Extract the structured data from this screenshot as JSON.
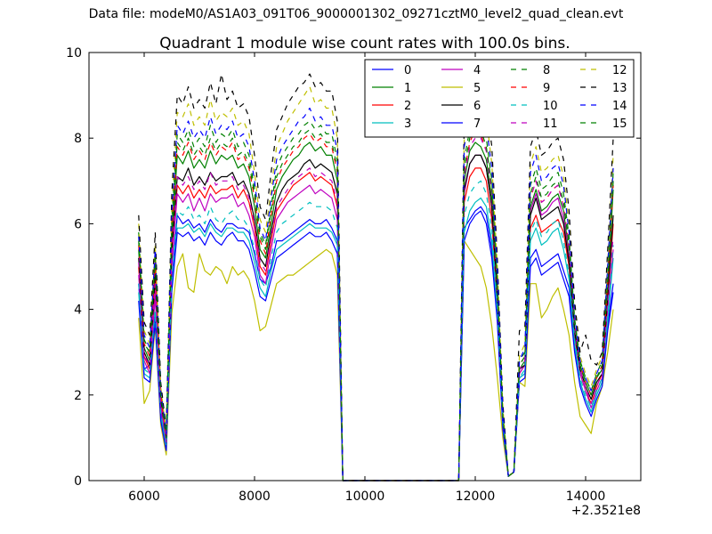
{
  "header": {
    "data_file": "Data file: modeM0/AS1A03_091T06_9000001302_09271cztM0_level2_quad_clean.evt"
  },
  "chart_data": {
    "type": "line",
    "title": "Quadrant 1 module wise count rates with 100.0s bins.",
    "xlabel": "",
    "ylabel": "",
    "xlim": [
      5000,
      15000
    ],
    "ylim": [
      0,
      10
    ],
    "x_offset_label": "+2.3521e8",
    "xticks": [
      6000,
      8000,
      10000,
      12000,
      14000
    ],
    "yticks": [
      0,
      2,
      4,
      6,
      8,
      10
    ],
    "legend_position": "top-right",
    "x": [
      5900,
      6000,
      6100,
      6200,
      6300,
      6400,
      6500,
      6600,
      6700,
      6800,
      6900,
      7000,
      7100,
      7200,
      7300,
      7400,
      7500,
      7600,
      7700,
      7800,
      7900,
      8000,
      8100,
      8200,
      8300,
      8400,
      8500,
      8600,
      8700,
      8800,
      8900,
      9000,
      9100,
      9200,
      9300,
      9400,
      9500,
      9600,
      11700,
      11800,
      11900,
      12000,
      12100,
      12200,
      12300,
      12400,
      12500,
      12600,
      12700,
      12800,
      12900,
      13000,
      13100,
      13200,
      13300,
      13400,
      13500,
      13600,
      13700,
      13800,
      13900,
      14000,
      14100,
      14200,
      14300,
      14400,
      14500
    ],
    "series": [
      {
        "name": "0",
        "color": "#0000ff",
        "dash": "solid",
        "values": [
          4.6,
          2.6,
          2.7,
          3.9,
          1.6,
          0.8,
          4.6,
          6.2,
          6.0,
          6.1,
          5.9,
          6.0,
          5.8,
          6.1,
          5.9,
          5.8,
          6.0,
          6.0,
          5.9,
          5.9,
          5.8,
          5.3,
          4.7,
          4.6,
          5.0,
          5.6,
          5.6,
          5.7,
          5.8,
          5.9,
          6.0,
          6.1,
          6.0,
          6.0,
          6.1,
          5.9,
          5.6,
          0.0,
          0.0,
          5.9,
          6.1,
          6.3,
          6.4,
          6.2,
          5.4,
          3.8,
          1.3,
          0.1,
          0.2,
          2.4,
          2.5,
          5.2,
          5.4,
          5.0,
          5.1,
          5.2,
          5.3,
          4.9,
          4.5,
          3.1,
          2.3,
          1.9,
          1.6,
          2.0,
          2.3,
          3.6,
          4.6
        ]
      },
      {
        "name": "1",
        "color": "#008000",
        "dash": "solid",
        "values": [
          5.4,
          3.1,
          2.8,
          5.0,
          2.0,
          1.0,
          5.6,
          7.6,
          7.4,
          7.7,
          7.3,
          7.5,
          7.3,
          7.7,
          7.4,
          7.6,
          7.5,
          7.6,
          7.3,
          7.4,
          7.1,
          6.4,
          5.4,
          5.2,
          6.0,
          6.8,
          7.1,
          7.3,
          7.5,
          7.6,
          7.8,
          7.9,
          7.7,
          7.8,
          7.6,
          7.6,
          7.0,
          0.0,
          0.0,
          7.0,
          7.7,
          7.9,
          7.8,
          7.5,
          6.6,
          4.4,
          1.5,
          0.1,
          0.2,
          2.6,
          2.8,
          6.4,
          6.8,
          6.3,
          6.4,
          6.6,
          6.7,
          6.3,
          5.3,
          3.6,
          2.7,
          2.3,
          2.0,
          2.4,
          2.6,
          4.5,
          6.8
        ]
      },
      {
        "name": "2",
        "color": "#ff0000",
        "dash": "solid",
        "values": [
          5.0,
          2.9,
          2.6,
          4.6,
          1.8,
          0.9,
          5.2,
          6.9,
          6.7,
          6.9,
          6.6,
          6.8,
          6.6,
          6.9,
          6.7,
          6.8,
          6.8,
          6.9,
          6.6,
          6.8,
          6.5,
          5.9,
          5.0,
          4.8,
          5.6,
          6.3,
          6.5,
          6.7,
          6.9,
          7.0,
          7.1,
          7.2,
          7.0,
          7.1,
          7.0,
          6.9,
          6.4,
          0.0,
          0.0,
          6.5,
          7.1,
          7.3,
          7.3,
          7.0,
          6.1,
          4.1,
          1.4,
          0.1,
          0.2,
          2.5,
          2.7,
          5.9,
          6.2,
          5.8,
          5.9,
          6.0,
          6.1,
          5.8,
          5.0,
          3.4,
          2.5,
          2.1,
          1.8,
          2.2,
          2.5,
          4.2,
          6.0
        ]
      },
      {
        "name": "3",
        "color": "#00bfbf",
        "dash": "solid",
        "values": [
          4.4,
          2.5,
          2.4,
          3.8,
          1.5,
          0.8,
          4.5,
          5.9,
          5.9,
          6.0,
          5.8,
          5.9,
          5.7,
          6.0,
          5.8,
          5.7,
          5.9,
          5.9,
          5.8,
          5.8,
          5.6,
          5.1,
          4.5,
          4.3,
          4.9,
          5.4,
          5.5,
          5.6,
          5.7,
          5.8,
          5.9,
          6.0,
          5.9,
          5.9,
          5.9,
          5.8,
          5.5,
          0.0,
          0.0,
          5.8,
          6.3,
          6.5,
          6.6,
          6.4,
          5.6,
          3.9,
          1.3,
          0.1,
          0.2,
          2.4,
          2.5,
          5.6,
          5.9,
          5.5,
          5.6,
          5.8,
          5.9,
          5.4,
          4.7,
          3.2,
          2.3,
          1.9,
          1.6,
          2.0,
          2.3,
          3.7,
          5.2
        ]
      },
      {
        "name": "4",
        "color": "#bf00bf",
        "dash": "solid",
        "values": [
          4.8,
          2.8,
          2.5,
          4.3,
          1.7,
          0.9,
          5.0,
          6.7,
          6.5,
          6.7,
          6.3,
          6.6,
          6.3,
          6.7,
          6.5,
          6.6,
          6.6,
          6.7,
          6.4,
          6.5,
          6.2,
          5.7,
          4.8,
          4.6,
          5.4,
          6.1,
          6.3,
          6.5,
          6.6,
          6.7,
          6.8,
          6.9,
          6.7,
          6.8,
          6.7,
          6.6,
          6.1,
          0.0,
          0.0,
          6.7,
          7.4,
          7.6,
          7.6,
          7.3,
          6.4,
          4.3,
          1.4,
          0.1,
          0.2,
          2.5,
          2.7,
          6.3,
          6.7,
          6.2,
          6.3,
          6.5,
          6.6,
          6.1,
          5.2,
          3.5,
          2.5,
          2.1,
          1.7,
          2.1,
          2.4,
          4.0,
          5.4
        ]
      },
      {
        "name": "5",
        "color": "#bfbf00",
        "dash": "solid",
        "values": [
          3.8,
          1.8,
          2.1,
          3.6,
          1.3,
          0.6,
          3.9,
          5.0,
          5.3,
          4.5,
          4.4,
          5.3,
          4.9,
          4.8,
          5.0,
          4.9,
          4.6,
          5.0,
          4.8,
          4.9,
          4.7,
          4.2,
          3.5,
          3.6,
          4.1,
          4.6,
          4.7,
          4.8,
          4.8,
          4.9,
          5.0,
          5.1,
          5.2,
          5.3,
          5.4,
          5.3,
          4.8,
          0.0,
          0.0,
          5.6,
          5.4,
          5.2,
          5.0,
          4.5,
          3.6,
          2.4,
          1.0,
          0.1,
          0.2,
          2.3,
          2.2,
          4.6,
          4.6,
          3.8,
          4.0,
          4.3,
          4.5,
          4.0,
          3.4,
          2.3,
          1.5,
          1.3,
          1.1,
          1.8,
          2.2,
          3.0,
          4.0
        ]
      },
      {
        "name": "6",
        "color": "#000000",
        "dash": "solid",
        "values": [
          5.2,
          3.0,
          2.7,
          4.8,
          1.9,
          1.0,
          5.4,
          7.1,
          7.0,
          7.3,
          6.9,
          7.1,
          6.9,
          7.2,
          7.0,
          7.1,
          7.1,
          7.2,
          6.9,
          7.0,
          6.7,
          6.1,
          5.2,
          5.0,
          5.8,
          6.5,
          6.8,
          7.0,
          7.1,
          7.2,
          7.4,
          7.5,
          7.3,
          7.4,
          7.3,
          7.2,
          6.7,
          0.0,
          0.0,
          6.8,
          7.4,
          7.6,
          7.6,
          7.3,
          6.4,
          4.3,
          1.5,
          0.1,
          0.2,
          2.6,
          2.7,
          6.2,
          6.6,
          6.1,
          6.2,
          6.3,
          6.4,
          6.0,
          5.1,
          3.5,
          2.6,
          2.2,
          1.9,
          2.3,
          2.5,
          4.3,
          6.2
        ]
      },
      {
        "name": "7",
        "color": "#0000ff",
        "dash": "solid",
        "values": [
          4.2,
          2.4,
          2.3,
          3.7,
          1.4,
          0.7,
          4.4,
          5.8,
          5.7,
          5.8,
          5.6,
          5.7,
          5.5,
          5.8,
          5.6,
          5.5,
          5.7,
          5.8,
          5.6,
          5.6,
          5.4,
          4.9,
          4.3,
          4.2,
          4.7,
          5.2,
          5.3,
          5.4,
          5.5,
          5.6,
          5.7,
          5.8,
          5.7,
          5.7,
          5.8,
          5.6,
          5.3,
          0.0,
          0.0,
          5.6,
          6.0,
          6.2,
          6.3,
          6.0,
          5.2,
          3.7,
          1.2,
          0.1,
          0.2,
          2.3,
          2.4,
          5.0,
          5.2,
          4.8,
          4.9,
          5.0,
          5.1,
          4.7,
          4.3,
          3.0,
          2.2,
          1.8,
          1.5,
          1.9,
          2.2,
          3.5,
          4.4
        ]
      },
      {
        "name": "8",
        "color": "#008000",
        "dash": "dashed",
        "values": [
          5.8,
          3.3,
          3.0,
          5.3,
          2.1,
          1.1,
          6.1,
          8.1,
          7.9,
          8.2,
          7.8,
          8.0,
          7.8,
          8.3,
          7.9,
          8.1,
          8.0,
          8.2,
          7.8,
          7.9,
          7.6,
          6.8,
          5.8,
          5.5,
          6.4,
          7.3,
          7.6,
          7.8,
          8.0,
          8.1,
          8.3,
          8.4,
          8.2,
          8.3,
          8.1,
          8.1,
          7.5,
          0.0,
          0.0,
          7.5,
          8.2,
          8.5,
          8.4,
          8.0,
          7.0,
          4.7,
          1.6,
          0.1,
          0.2,
          2.8,
          3.0,
          6.9,
          7.3,
          6.8,
          6.9,
          7.1,
          7.2,
          6.7,
          5.7,
          3.8,
          2.8,
          2.4,
          2.1,
          2.5,
          2.8,
          4.8,
          7.2
        ]
      },
      {
        "name": "9",
        "color": "#ff0000",
        "dash": "dashed",
        "values": [
          5.5,
          3.2,
          2.9,
          5.1,
          2.0,
          1.0,
          5.8,
          7.8,
          7.6,
          7.9,
          7.5,
          7.7,
          7.5,
          7.9,
          7.6,
          7.8,
          7.7,
          7.9,
          7.5,
          7.6,
          7.3,
          6.6,
          5.6,
          5.3,
          6.2,
          7.0,
          7.3,
          7.5,
          7.7,
          7.8,
          8.0,
          8.1,
          7.9,
          8.0,
          7.8,
          7.8,
          7.2,
          0.0,
          0.0,
          7.2,
          7.9,
          8.2,
          8.1,
          7.7,
          6.8,
          4.5,
          1.5,
          0.1,
          0.2,
          2.7,
          2.9,
          6.6,
          7.0,
          6.5,
          6.6,
          6.8,
          6.9,
          6.4,
          5.5,
          3.7,
          2.7,
          2.3,
          2.0,
          2.4,
          2.7,
          4.6,
          6.9
        ]
      },
      {
        "name": "10",
        "color": "#00bfbf",
        "dash": "dashed",
        "values": [
          4.6,
          2.6,
          2.5,
          4.0,
          1.6,
          0.8,
          4.7,
          6.3,
          6.2,
          6.4,
          6.1,
          6.2,
          6.0,
          6.4,
          6.1,
          6.0,
          6.2,
          6.3,
          6.1,
          6.1,
          5.9,
          5.4,
          4.7,
          4.5,
          5.2,
          5.8,
          6.0,
          6.1,
          6.2,
          6.3,
          6.4,
          6.5,
          6.4,
          6.4,
          6.4,
          6.3,
          5.9,
          0.0,
          0.0,
          6.2,
          6.7,
          6.9,
          7.0,
          6.7,
          5.9,
          4.0,
          1.4,
          0.1,
          0.2,
          2.4,
          2.6,
          5.8,
          6.1,
          5.7,
          5.8,
          6.0,
          6.1,
          5.6,
          4.8,
          3.3,
          2.4,
          2.0,
          1.7,
          2.1,
          2.4,
          3.9,
          5.5
        ]
      },
      {
        "name": "11",
        "color": "#bf00bf",
        "dash": "dashed",
        "values": [
          5.1,
          2.9,
          2.7,
          4.6,
          1.8,
          0.9,
          5.3,
          7.1,
          6.9,
          7.1,
          6.8,
          7.0,
          6.8,
          7.2,
          6.9,
          7.0,
          7.0,
          7.1,
          6.8,
          6.9,
          6.6,
          6.0,
          5.1,
          4.9,
          5.7,
          6.4,
          6.6,
          6.8,
          7.0,
          7.1,
          7.2,
          7.3,
          7.1,
          7.2,
          7.1,
          7.0,
          6.5,
          0.0,
          0.0,
          7.1,
          7.8,
          8.0,
          8.0,
          7.7,
          6.7,
          4.5,
          1.5,
          0.1,
          0.2,
          2.6,
          2.8,
          6.6,
          7.0,
          6.5,
          6.6,
          6.8,
          6.9,
          6.4,
          5.4,
          3.6,
          2.6,
          2.2,
          1.8,
          2.2,
          2.5,
          4.2,
          5.7
        ]
      },
      {
        "name": "12",
        "color": "#bfbf00",
        "dash": "dashed",
        "values": [
          6.0,
          3.5,
          3.2,
          5.5,
          2.2,
          1.1,
          6.4,
          8.6,
          8.5,
          8.8,
          8.3,
          8.5,
          8.3,
          8.9,
          8.4,
          8.6,
          8.5,
          8.7,
          8.3,
          8.4,
          8.1,
          7.2,
          6.1,
          5.8,
          6.8,
          7.8,
          8.1,
          8.4,
          8.6,
          8.8,
          9.0,
          9.2,
          8.8,
          8.9,
          8.7,
          8.7,
          8.0,
          0.0,
          0.0,
          8.0,
          8.7,
          9.0,
          8.9,
          8.5,
          7.4,
          5.0,
          1.7,
          0.1,
          0.2,
          2.9,
          3.2,
          7.4,
          7.8,
          7.2,
          7.3,
          7.5,
          7.6,
          7.1,
          6.0,
          4.0,
          2.9,
          2.5,
          2.2,
          2.6,
          2.9,
          5.1,
          7.6
        ]
      },
      {
        "name": "13",
        "color": "#000000",
        "dash": "dashed",
        "values": [
          6.2,
          3.7,
          3.4,
          5.8,
          2.3,
          1.2,
          6.7,
          9.0,
          8.8,
          9.2,
          8.7,
          8.9,
          8.7,
          9.3,
          8.8,
          9.5,
          8.9,
          9.1,
          8.7,
          8.8,
          8.5,
          7.6,
          6.4,
          6.1,
          7.2,
          8.2,
          8.5,
          8.8,
          9.0,
          9.2,
          9.3,
          9.5,
          9.2,
          9.3,
          9.1,
          9.1,
          8.4,
          0.0,
          0.0,
          8.4,
          9.1,
          9.4,
          9.3,
          8.9,
          7.8,
          5.2,
          1.8,
          0.1,
          0.2,
          3.5,
          3.6,
          7.8,
          8.2,
          7.6,
          7.7,
          7.9,
          8.0,
          7.5,
          6.3,
          4.2,
          3.0,
          3.4,
          2.8,
          2.7,
          3.0,
          5.4,
          8.0
        ]
      },
      {
        "name": "14",
        "color": "#0000ff",
        "dash": "dashed",
        "values": [
          5.7,
          3.4,
          3.1,
          5.4,
          2.1,
          1.1,
          6.2,
          8.3,
          8.1,
          8.4,
          8.0,
          8.2,
          8.0,
          8.5,
          8.1,
          8.3,
          8.2,
          8.4,
          8.0,
          8.1,
          7.8,
          7.0,
          5.9,
          5.6,
          6.6,
          7.5,
          7.8,
          8.0,
          8.2,
          8.4,
          8.5,
          8.7,
          8.4,
          8.5,
          8.3,
          8.3,
          7.7,
          0.0,
          0.0,
          7.8,
          8.5,
          8.8,
          8.7,
          8.3,
          7.3,
          4.9,
          1.6,
          0.1,
          0.2,
          2.8,
          3.1,
          7.2,
          7.6,
          7.0,
          7.1,
          7.3,
          7.4,
          6.9,
          5.8,
          3.9,
          2.8,
          2.4,
          2.1,
          2.5,
          2.8,
          5.0,
          7.3
        ]
      },
      {
        "name": "15",
        "color": "#008000",
        "dash": "dashed",
        "values": [
          5.6,
          3.2,
          3.0,
          5.2,
          2.0,
          1.0,
          5.9,
          7.9,
          7.7,
          8.0,
          7.6,
          7.8,
          7.6,
          8.0,
          7.7,
          7.9,
          7.8,
          8.0,
          7.6,
          7.7,
          7.4,
          6.7,
          5.7,
          5.4,
          6.3,
          7.1,
          7.4,
          7.6,
          7.8,
          7.9,
          8.1,
          8.2,
          8.0,
          8.1,
          7.9,
          7.9,
          7.3,
          0.0,
          0.0,
          7.3,
          8.0,
          8.3,
          8.2,
          7.8,
          6.9,
          4.6,
          1.5,
          0.1,
          0.2,
          2.7,
          2.9,
          6.7,
          7.1,
          6.6,
          6.7,
          6.9,
          7.0,
          6.5,
          5.5,
          3.7,
          2.7,
          2.3,
          2.0,
          2.4,
          2.7,
          4.7,
          7.0
        ]
      }
    ]
  }
}
